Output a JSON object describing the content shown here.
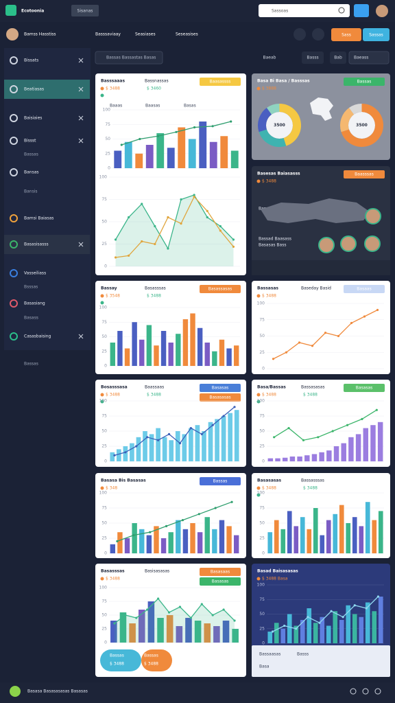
{
  "header": {
    "logo": "Ecotoonia",
    "button": "Sisanas",
    "search": "Sassoas",
    "user": "Bamss Hasstiss",
    "nav": [
      "Basssaviaay",
      "Seasiases",
      "Seseasises"
    ],
    "actions": [
      {
        "text": "Sass",
        "color": "#f08a3c"
      },
      {
        "text": "Sassas",
        "color": "#3fb3e0"
      }
    ]
  },
  "toolbar": {
    "search": "Bassas Bassastas Basas",
    "filters": [
      "Baeab",
      "Basss",
      "Bab"
    ],
    "dropdown": "Baeass"
  },
  "sidebar": {
    "items": [
      "Bissats",
      "Beatiasas",
      "Baisiaies",
      "Bissst",
      "Bassas",
      "Bansas",
      "Bansis",
      "Bamsi Baiasas",
      "Basasisasss",
      "Vasseiliass",
      "Bsssas",
      "Basasiang",
      "Basass",
      "Casasbaising",
      "Bassas"
    ]
  },
  "cards": [
    {
      "title": "Basssaaas",
      "subtitle": "Bassnassas",
      "amounts": [
        "$ 3488",
        "$ 3460"
      ],
      "buttons": [
        {
          "text": "Baasassss",
          "color": "#f5c842"
        }
      ],
      "notes": [
        "Baaas",
        "Baasas",
        "Basas"
      ],
      "charts": [
        {
          "type": "combo",
          "ylim": [
            0,
            100
          ],
          "yticks": [
            0,
            25,
            50,
            75,
            100
          ],
          "bars": {
            "values": [
              30,
              45,
              25,
              40,
              60,
              35,
              70,
              50,
              80,
              45,
              55,
              30
            ],
            "colors": [
              "#4a5fc1",
              "#47b8d8",
              "#f08a3c",
              "#7b5cc4",
              "#3bb58a",
              "#4a5fc1",
              "#f08a3c",
              "#47b8d8",
              "#4a5fc1",
              "#7b5cc4",
              "#f08a3c",
              "#3bb58a"
            ]
          },
          "lines": [
            {
              "values": [
                40,
                50,
                55,
                62,
                70,
                72,
                80
              ],
              "color": "#2e9e6e",
              "area": false
            }
          ]
        },
        {
          "type": "combo",
          "ylim": [
            0,
            100
          ],
          "yticks": [
            0,
            25,
            50,
            75,
            100
          ],
          "lines": [
            {
              "values": [
                30,
                55,
                70,
                45,
                20,
                75,
                80,
                55,
                45,
                30
              ],
              "color": "#3bb58a",
              "area": true
            },
            {
              "values": [
                10,
                12,
                28,
                25,
                55,
                48,
                78,
                62,
                40,
                22
              ],
              "color": "#e0a53c",
              "area": false
            }
          ]
        }
      ]
    },
    {
      "title": "Basa Bi Basa / Basssas",
      "amounts": [
        "$ 3888"
      ],
      "buttons": [
        {
          "text": "Bassas",
          "color": "#3bb56a"
        }
      ],
      "charts": [
        {
          "type": "donut",
          "values": [
            45,
            25,
            20,
            10
          ],
          "colors": [
            "#f5c842",
            "#3fb3b0",
            "#4a5fc1",
            "#8fd3c0"
          ],
          "label": "3500"
        },
        {
          "type": "donut",
          "values": [
            70,
            20,
            10
          ],
          "colors": [
            "#f08a3c",
            "#f5b870",
            "#d9d9d9"
          ],
          "label": "3500"
        }
      ]
    },
    {
      "title": "Basesas Baiasasss",
      "amounts": [
        "$ 3488"
      ],
      "buttons": [
        {
          "text": "Baasssas",
          "color": "#f08a3c"
        }
      ],
      "notes": [
        "Bassad Bassaasas",
        "Bassad Baasass",
        "Basasas Bass",
        "Bas",
        "Bass",
        "Bass",
        "Basasa"
      ],
      "charts": []
    },
    {
      "title": "Bassay",
      "subtitle": "Basasssas",
      "amounts": [
        "$ 3548",
        "$ 3488"
      ],
      "buttons": [
        {
          "text": "Basassasas",
          "color": "#f08a3c"
        }
      ],
      "charts": [
        {
          "type": "combo",
          "ylim": [
            0,
            100
          ],
          "yticks": [
            0,
            25,
            50,
            75,
            100
          ],
          "bars": {
            "values": [
              40,
              60,
              30,
              75,
              45,
              70,
              35,
              60,
              40,
              55,
              80,
              90,
              65,
              40,
              25,
              45,
              30,
              35
            ],
            "colors": [
              "#3bb58a",
              "#4a5fc1",
              "#f08a3c",
              "#4a5fc1",
              "#7b5cc4",
              "#3bb58a",
              "#f08a3c",
              "#4a5fc1",
              "#7b5cc4",
              "#3bb58a",
              "#f08a3c",
              "#f08a3c",
              "#4a5fc1",
              "#7b5cc4",
              "#3bb58a",
              "#f08a3c",
              "#4a5fc1",
              "#f08a3c"
            ]
          }
        }
      ]
    },
    {
      "title": "Bassasas",
      "subtitle": "Baseday Basid",
      "amounts": [
        "$ 3488"
      ],
      "buttons": [
        {
          "text": "Basaas",
          "color": "#c8d8f5"
        }
      ],
      "charts": [
        {
          "type": "combo",
          "ylim": [
            0,
            100
          ],
          "yticks": [
            0,
            25,
            50,
            75,
            100
          ],
          "lines": [
            {
              "values": [
                15,
                25,
                40,
                35,
                55,
                50,
                70,
                80,
                90
              ],
              "color": "#f08a3c",
              "area": false
            }
          ]
        }
      ]
    },
    {
      "title": "Bosasssasa",
      "subtitle": "Baassaas",
      "amounts": [
        "$ 3488",
        "$ 3488"
      ],
      "buttons": [
        {
          "text": "Basasas",
          "color": "#4a7fd8"
        },
        {
          "text": "Basasasas",
          "color": "#f08a3c"
        }
      ],
      "charts": [
        {
          "type": "combo",
          "ylim": [
            0,
            100
          ],
          "yticks": [
            0,
            25,
            50,
            75,
            100
          ],
          "bars": {
            "values": [
              15,
              20,
              25,
              30,
              40,
              50,
              45,
              55,
              40,
              35,
              50,
              45,
              55,
              60,
              50,
              65,
              70,
              75,
              80,
              85
            ],
            "colors": [
              "#6ccbe8"
            ]
          },
          "lines": [
            {
              "values": [
                10,
                15,
                25,
                40,
                35,
                45,
                30,
                55,
                45,
                60,
                75,
                90
              ],
              "color": "#3a5fb8",
              "area": false
            }
          ]
        }
      ]
    },
    {
      "title": "Basa/Bassas",
      "subtitle": "Bassasasas",
      "amounts": [
        "$ 3488",
        "$ 3488"
      ],
      "buttons": [
        {
          "text": "Basasas",
          "color": "#5bc06a"
        }
      ],
      "charts": [
        {
          "type": "combo",
          "ylim": [
            0,
            100
          ],
          "yticks": [
            0,
            25,
            50,
            75,
            100
          ],
          "bars": {
            "values": [
              5,
              5,
              6,
              8,
              8,
              10,
              12,
              15,
              18,
              25,
              30,
              40,
              45,
              55,
              60,
              65
            ],
            "colors": [
              "#9b7de0"
            ]
          },
          "lines": [
            {
              "values": [
                40,
                55,
                35,
                40,
                50,
                60,
                70,
                85
              ],
              "color": "#3bb56a",
              "area": false
            }
          ]
        }
      ]
    },
    {
      "title": "Basasa Bis Basasas",
      "amounts": [
        "$ 348"
      ],
      "buttons": [
        {
          "text": "Bassas",
          "color": "#4a6fd8"
        }
      ],
      "charts": [
        {
          "type": "combo",
          "ylim": [
            0,
            100
          ],
          "yticks": [
            0,
            25,
            50,
            75,
            100
          ],
          "bars": {
            "values": [
              15,
              35,
              25,
              50,
              40,
              30,
              45,
              25,
              35,
              55,
              40,
              50,
              35,
              60,
              40,
              55,
              45,
              30
            ],
            "colors": [
              "#4a5fc1",
              "#f08a3c",
              "#7b5cc4",
              "#3bb58a",
              "#47b8d8"
            ]
          },
          "lines": [
            {
              "values": [
                20,
                30,
                35,
                45,
                55,
                65,
                75,
                85
              ],
              "color": "#2e9e6e",
              "area": false
            }
          ]
        }
      ]
    },
    {
      "title": "Basasasas",
      "subtitle": "Bassasssas",
      "amounts": [
        "$ 3488",
        "$ 3488"
      ],
      "buttons": [],
      "charts": [
        {
          "type": "combo",
          "ylim": [
            0,
            100
          ],
          "yticks": [
            0,
            25,
            50,
            75,
            100
          ],
          "bars": {
            "values": [
              35,
              55,
              40,
              70,
              45,
              60,
              40,
              75,
              30,
              55,
              65,
              80,
              50,
              60,
              45,
              85,
              55,
              70
            ],
            "colors": [
              "#47b8d8",
              "#f08a3c",
              "#3bb58a",
              "#4a5fc1",
              "#7b5cc4"
            ]
          }
        }
      ]
    },
    {
      "title": "Basasssas",
      "subtitle": "Basisasasas",
      "amounts": [
        "$ 3488"
      ],
      "buttons": [
        {
          "text": "Basasaas",
          "color": "#f08a3c"
        },
        {
          "text": "Basasas",
          "color": "#3bb56a"
        }
      ],
      "notes": [
        "Bassas",
        "$ 3488",
        "Bassas",
        "$ 3488"
      ],
      "charts": [
        {
          "type": "combo",
          "ylim": [
            0,
            100
          ],
          "yticks": [
            0,
            25,
            50,
            75,
            100
          ],
          "bars": {
            "values": [
              40,
              55,
              35,
              60,
              75,
              45,
              50,
              30,
              45,
              40,
              35,
              30,
              40,
              25
            ],
            "colors": [
              "#4a5fc1",
              "#3bb58a",
              "#f08a3c",
              "#7b5cc4"
            ]
          },
          "lines": [
            {
              "values": [
                35,
                50,
                45,
                60,
                80,
                55,
                65,
                45,
                70,
                50,
                60,
                40
              ],
              "color": "#3bb58a",
              "area": true
            }
          ]
        }
      ]
    },
    {
      "title": "Basad Baisasasas",
      "amounts": [
        "$ 3488 Basa"
      ],
      "buttons": [],
      "notes": [
        "Bassaasas",
        "Basss",
        "Basa"
      ],
      "charts": [
        {
          "type": "combo",
          "ylim": [
            0,
            100
          ],
          "yticks": [
            0,
            25,
            50,
            75,
            100
          ],
          "bars": {
            "values": [
              20,
              35,
              25,
              50,
              30,
              40,
              60,
              35,
              45,
              30,
              55,
              40,
              65,
              50,
              45,
              70,
              55,
              80
            ],
            "colors": [
              "#47b8d8",
              "#3bb5a0",
              "#5f7fe0"
            ]
          },
          "lines": [
            {
              "values": [
                20,
                30,
                25,
                45,
                35,
                55,
                45,
                65,
                60,
                80
              ],
              "color": "#8fd8f0",
              "area": false
            }
          ]
        }
      ]
    }
  ],
  "footer": {
    "text": "Basasa Basasasasas Basasas"
  }
}
